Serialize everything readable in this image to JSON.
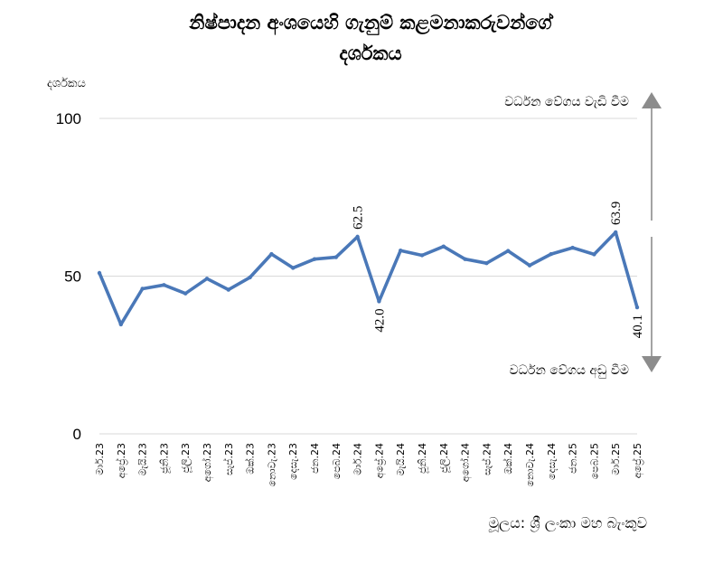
{
  "chart_data": {
    "type": "line",
    "title_line1": "නිෂ්පාදන අංශයෙහි ගැනුම් කළමනාකරුවන්ගේ",
    "title_line2": "දර්ශකය",
    "ylabel": "දර්ශකය",
    "ylim": [
      0,
      100
    ],
    "yticks": [
      0,
      50,
      100
    ],
    "grid": true,
    "categories": [
      "මාර්.23",
      "අප්‍රේ.23",
      "මැයි.23",
      "ජූනි.23",
      "ජූලි.23",
      "අගෝ.23",
      "සැප්.23",
      "ඔක්.23",
      "නොවැ.23",
      "දෙසැ.23",
      "ජන.24",
      "පෙබ.24",
      "මාර්.24",
      "අප්‍රේ.24",
      "මැයි.24",
      "ජූනි.24",
      "ජූලි.24",
      "අගෝ.24",
      "සැප්.24",
      "ඔක්.24",
      "නොවැ.24",
      "දෙසැ.24",
      "ජන.25",
      "පෙබ.25",
      "මාර්.25",
      "අප්‍රේ.25"
    ],
    "series": [
      {
        "values": [
          51.0,
          34.7,
          46.0,
          47.2,
          44.5,
          49.2,
          45.7,
          49.6,
          57.0,
          52.6,
          55.4,
          56.0,
          62.5,
          42.0,
          58.1,
          56.6,
          59.4,
          55.4,
          54.1,
          58.0,
          53.4,
          57.0,
          59.0,
          56.9,
          63.9,
          40.1
        ]
      }
    ],
    "data_labels": [
      {
        "index": 12,
        "text": "62.5"
      },
      {
        "index": 13,
        "text": "42.0"
      },
      {
        "index": 24,
        "text": "63.9"
      },
      {
        "index": 25,
        "text": "40.1"
      }
    ],
    "annotations": {
      "up": "වර්ධන වේගය වැඩි වීම",
      "down": "වර්ධන වේගය අඩු වීම"
    },
    "source": "මූලය: ශ්‍රී ලංකා මහ බැංකුව",
    "colors": {
      "line": "#4a78b8",
      "grid": "#d9d9d9",
      "arrow": "#8c8c8c"
    }
  }
}
